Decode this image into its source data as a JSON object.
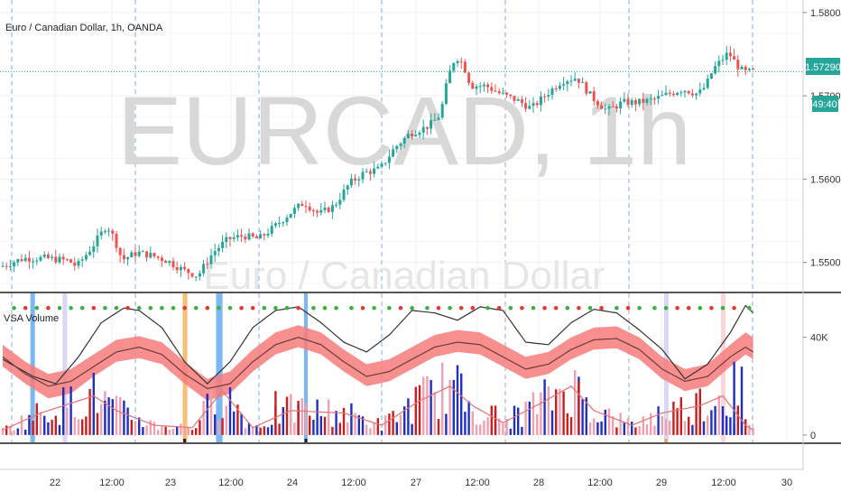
{
  "header": {
    "symbol_title": "Euro / Canadian Dollar, 1h, OANDA",
    "watermark_symbol": "EURCAD, 1h",
    "watermark_desc": "Euro / Canadian Dollar",
    "indicator_title": "VSA Volume"
  },
  "badges": {
    "last_price": "1.57290",
    "countdown": "49:40"
  },
  "colors": {
    "up": "#26a69a",
    "down": "#ef5350",
    "price_line": "#26a69a",
    "band_fill": "#f77b7b",
    "vol_blue": "#1f2fbf",
    "vol_red": "#c81e1e",
    "vol_pink": "#f0a0b0",
    "highlight_blue": "#5aa6ee",
    "highlight_orange": "#f5a43c",
    "highlight_lavender": "#c8c8f0",
    "highlight_pink": "#f6c6cc",
    "dot_green": "#3cb043",
    "dot_red": "#e53935"
  },
  "chart_data": [
    {
      "type": "candlestick",
      "title": "Euro / Canadian Dollar, 1h, OANDA",
      "ylim": [
        1.5465,
        1.5815
      ],
      "y_ticks": [
        {
          "value": 1.58,
          "label": "1.58000"
        },
        {
          "value": 1.57,
          "label": "1.57000"
        },
        {
          "value": 1.56,
          "label": "1.56000"
        },
        {
          "value": 1.55,
          "label": "1.55000"
        }
      ],
      "last_price": 1.5729,
      "x_ticks": [
        "22",
        "12:00",
        "23",
        "12:00",
        "24",
        "12:00",
        "27",
        "12:00",
        "28",
        "12:00",
        "29",
        "12:00",
        "30"
      ],
      "anchors": [
        [
          0,
          1.5495
        ],
        [
          6,
          1.5505
        ],
        [
          12,
          1.5505
        ],
        [
          18,
          1.5502
        ],
        [
          20,
          1.5495
        ],
        [
          24,
          1.5518
        ],
        [
          28,
          1.5545
        ],
        [
          30,
          1.5528
        ],
        [
          32,
          1.5503
        ],
        [
          36,
          1.5512
        ],
        [
          40,
          1.5508
        ],
        [
          44,
          1.5502
        ],
        [
          48,
          1.5491
        ],
        [
          52,
          1.5484
        ],
        [
          56,
          1.5512
        ],
        [
          60,
          1.5528
        ],
        [
          64,
          1.5532
        ],
        [
          68,
          1.5528
        ],
        [
          72,
          1.5542
        ],
        [
          76,
          1.5558
        ],
        [
          80,
          1.5572
        ],
        [
          84,
          1.5558
        ],
        [
          88,
          1.5568
        ],
        [
          92,
          1.5595
        ],
        [
          96,
          1.5608
        ],
        [
          100,
          1.5612
        ],
        [
          104,
          1.5638
        ],
        [
          108,
          1.5655
        ],
        [
          112,
          1.5662
        ],
        [
          114,
          1.5668
        ],
        [
          116,
          1.5678
        ],
        [
          118,
          1.5722
        ],
        [
          120,
          1.5748
        ],
        [
          122,
          1.5738
        ],
        [
          124,
          1.5712
        ],
        [
          128,
          1.5712
        ],
        [
          132,
          1.5702
        ],
        [
          136,
          1.5695
        ],
        [
          140,
          1.5685
        ],
        [
          144,
          1.5702
        ],
        [
          148,
          1.5718
        ],
        [
          152,
          1.5722
        ],
        [
          156,
          1.5698
        ],
        [
          160,
          1.5682
        ],
        [
          164,
          1.5692
        ],
        [
          168,
          1.5692
        ],
        [
          172,
          1.5695
        ],
        [
          176,
          1.5702
        ],
        [
          180,
          1.5708
        ],
        [
          184,
          1.5702
        ],
        [
          186,
          1.5712
        ],
        [
          188,
          1.5732
        ],
        [
          190,
          1.5742
        ],
        [
          192,
          1.5752
        ],
        [
          194,
          1.5738
        ],
        [
          196,
          1.5728
        ],
        [
          198,
          1.5729
        ]
      ]
    },
    {
      "type": "volume",
      "title": "VSA Volume",
      "ylim": [
        -3000,
        58000
      ],
      "y_ticks": [
        {
          "value": 40000,
          "label": "40K"
        },
        {
          "value": 0,
          "label": "0"
        }
      ],
      "upper_band": [
        [
          0,
          37000
        ],
        [
          6,
          30000
        ],
        [
          12,
          25000
        ],
        [
          18,
          27000
        ],
        [
          24,
          33000
        ],
        [
          30,
          39000
        ],
        [
          36,
          40500
        ],
        [
          42,
          38000
        ],
        [
          48,
          30000
        ],
        [
          54,
          23000
        ],
        [
          60,
          26000
        ],
        [
          66,
          35000
        ],
        [
          72,
          42000
        ],
        [
          78,
          45000
        ],
        [
          84,
          42000
        ],
        [
          90,
          35000
        ],
        [
          96,
          29000
        ],
        [
          102,
          31000
        ],
        [
          108,
          36000
        ],
        [
          114,
          41000
        ],
        [
          120,
          43000
        ],
        [
          126,
          42000
        ],
        [
          132,
          37000
        ],
        [
          138,
          32000
        ],
        [
          144,
          34000
        ],
        [
          150,
          40000
        ],
        [
          156,
          44000
        ],
        [
          162,
          44500
        ],
        [
          168,
          40000
        ],
        [
          174,
          32000
        ],
        [
          180,
          27000
        ],
        [
          186,
          29000
        ],
        [
          192,
          37000
        ],
        [
          196,
          42000
        ],
        [
          198,
          40000
        ]
      ],
      "lower_band": [
        [
          0,
          28000
        ],
        [
          6,
          21000
        ],
        [
          12,
          15000
        ],
        [
          18,
          17000
        ],
        [
          24,
          24000
        ],
        [
          30,
          30000
        ],
        [
          36,
          31500
        ],
        [
          42,
          29000
        ],
        [
          48,
          21000
        ],
        [
          54,
          14000
        ],
        [
          60,
          17000
        ],
        [
          66,
          26000
        ],
        [
          72,
          33000
        ],
        [
          78,
          36000
        ],
        [
          84,
          33000
        ],
        [
          90,
          26000
        ],
        [
          96,
          20000
        ],
        [
          102,
          22000
        ],
        [
          108,
          27000
        ],
        [
          114,
          32000
        ],
        [
          120,
          34000
        ],
        [
          126,
          33000
        ],
        [
          132,
          28000
        ],
        [
          138,
          23000
        ],
        [
          144,
          25000
        ],
        [
          150,
          31000
        ],
        [
          156,
          35000
        ],
        [
          162,
          35500
        ],
        [
          168,
          31000
        ],
        [
          174,
          23000
        ],
        [
          180,
          18000
        ],
        [
          186,
          20000
        ],
        [
          192,
          28000
        ],
        [
          196,
          33000
        ],
        [
          198,
          31000
        ]
      ],
      "upper_line": [
        [
          0,
          31000
        ],
        [
          8,
          24000
        ],
        [
          14,
          21000
        ],
        [
          20,
          32000
        ],
        [
          26,
          46000
        ],
        [
          32,
          52000
        ],
        [
          36,
          51000
        ],
        [
          42,
          44000
        ],
        [
          48,
          30000
        ],
        [
          54,
          21000
        ],
        [
          60,
          30000
        ],
        [
          66,
          44000
        ],
        [
          72,
          51000
        ],
        [
          78,
          52500
        ],
        [
          84,
          46000
        ],
        [
          90,
          38000
        ],
        [
          96,
          34000
        ],
        [
          102,
          41000
        ],
        [
          108,
          51000
        ],
        [
          114,
          50000
        ],
        [
          120,
          47000
        ],
        [
          126,
          52500
        ],
        [
          132,
          51000
        ],
        [
          138,
          38000
        ],
        [
          144,
          37000
        ],
        [
          150,
          46000
        ],
        [
          156,
          51500
        ],
        [
          162,
          50000
        ],
        [
          168,
          43000
        ],
        [
          174,
          35000
        ],
        [
          180,
          23000
        ],
        [
          186,
          29000
        ],
        [
          192,
          42000
        ],
        [
          196,
          53000
        ],
        [
          198,
          50000
        ]
      ],
      "lower_line": [
        [
          0,
          32000
        ],
        [
          6,
          25000
        ],
        [
          12,
          20000
        ],
        [
          18,
          22000
        ],
        [
          24,
          28000
        ],
        [
          30,
          34000
        ],
        [
          36,
          36000
        ],
        [
          42,
          33000
        ],
        [
          48,
          25000
        ],
        [
          54,
          19000
        ],
        [
          60,
          21000
        ],
        [
          66,
          30000
        ],
        [
          72,
          37000
        ],
        [
          78,
          40000
        ],
        [
          84,
          37000
        ],
        [
          90,
          30000
        ],
        [
          96,
          24000
        ],
        [
          102,
          26000
        ],
        [
          108,
          31000
        ],
        [
          114,
          36000
        ],
        [
          120,
          38000
        ],
        [
          126,
          37000
        ],
        [
          132,
          32000
        ],
        [
          138,
          27000
        ],
        [
          144,
          29000
        ],
        [
          150,
          35000
        ],
        [
          156,
          39000
        ],
        [
          162,
          39500
        ],
        [
          168,
          35000
        ],
        [
          174,
          27000
        ],
        [
          180,
          22000
        ],
        [
          186,
          24000
        ],
        [
          192,
          32000
        ],
        [
          196,
          36000
        ],
        [
          198,
          34000
        ]
      ],
      "avg_line": [
        [
          0,
          2000
        ],
        [
          10,
          9000
        ],
        [
          24,
          16000
        ],
        [
          30,
          10000
        ],
        [
          40,
          4000
        ],
        [
          50,
          3000
        ],
        [
          58,
          18000
        ],
        [
          66,
          3000
        ],
        [
          76,
          10000
        ],
        [
          90,
          9000
        ],
        [
          100,
          4000
        ],
        [
          110,
          14000
        ],
        [
          118,
          20000
        ],
        [
          124,
          12000
        ],
        [
          132,
          5000
        ],
        [
          142,
          13000
        ],
        [
          150,
          20000
        ],
        [
          156,
          10000
        ],
        [
          166,
          4000
        ],
        [
          174,
          9000
        ],
        [
          184,
          12000
        ],
        [
          190,
          16000
        ],
        [
          196,
          4000
        ],
        [
          198,
          2000
        ]
      ],
      "signal_dots": [
        [
          3,
          "g"
        ],
        [
          6,
          "r"
        ],
        [
          9,
          "g"
        ],
        [
          12,
          "r"
        ],
        [
          15,
          "g"
        ],
        [
          18,
          "g"
        ],
        [
          21,
          "g"
        ],
        [
          24,
          "r"
        ],
        [
          27,
          "g"
        ],
        [
          30,
          "g"
        ],
        [
          33,
          "r"
        ],
        [
          36,
          "g"
        ],
        [
          39,
          "g"
        ],
        [
          42,
          "g"
        ],
        [
          45,
          "g"
        ],
        [
          48,
          "r"
        ],
        [
          51,
          "g"
        ],
        [
          54,
          "r"
        ],
        [
          57,
          "g"
        ],
        [
          60,
          "g"
        ],
        [
          63,
          "r"
        ],
        [
          66,
          "r"
        ],
        [
          69,
          "g"
        ],
        [
          72,
          "g"
        ],
        [
          75,
          "g"
        ],
        [
          78,
          "r"
        ],
        [
          82,
          "g"
        ],
        [
          85,
          "g"
        ],
        [
          88,
          "g"
        ],
        [
          92,
          "g"
        ],
        [
          95,
          "r"
        ],
        [
          98,
          "g"
        ],
        [
          102,
          "g"
        ],
        [
          105,
          "r"
        ],
        [
          108,
          "g"
        ],
        [
          112,
          "g"
        ],
        [
          115,
          "r"
        ],
        [
          118,
          "g"
        ],
        [
          121,
          "r"
        ],
        [
          124,
          "r"
        ],
        [
          128,
          "g"
        ],
        [
          131,
          "r"
        ],
        [
          134,
          "g"
        ],
        [
          137,
          "r"
        ],
        [
          140,
          "g"
        ],
        [
          143,
          "r"
        ],
        [
          146,
          "r"
        ],
        [
          149,
          "g"
        ],
        [
          152,
          "r"
        ],
        [
          155,
          "g"
        ],
        [
          158,
          "r"
        ],
        [
          162,
          "g"
        ],
        [
          165,
          "r"
        ],
        [
          168,
          "g"
        ],
        [
          172,
          "g"
        ],
        [
          175,
          "g"
        ],
        [
          178,
          "r"
        ],
        [
          181,
          "r"
        ],
        [
          184,
          "g"
        ],
        [
          187,
          "r"
        ],
        [
          190,
          "g"
        ],
        [
          193,
          "r"
        ],
        [
          197,
          "g"
        ]
      ],
      "highlights": [
        [
          7.3,
          8.5,
          "blue"
        ],
        [
          15.8,
          17.0,
          "lavender"
        ],
        [
          47.5,
          48.7,
          "orange"
        ],
        [
          56.3,
          58.0,
          "blue"
        ],
        [
          79.5,
          80.5,
          "blue"
        ],
        [
          174.5,
          175.7,
          "lavender"
        ],
        [
          189.5,
          190.7,
          "pink"
        ]
      ]
    }
  ]
}
